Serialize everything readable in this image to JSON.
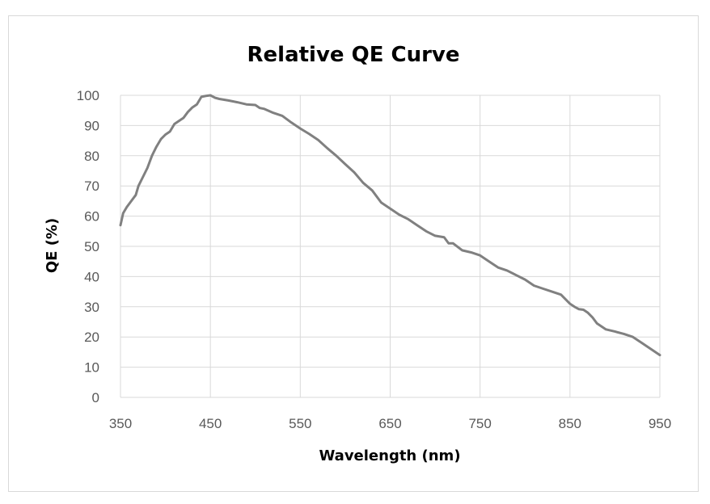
{
  "chart_data": {
    "type": "line",
    "title": "Relative QE Curve",
    "xlabel": "Wavelength (nm)",
    "ylabel": "QE (%)",
    "xlim": [
      350,
      950
    ],
    "ylim": [
      0,
      100
    ],
    "xticks": [
      350,
      450,
      550,
      650,
      750,
      850,
      950
    ],
    "yticks": [
      0,
      10,
      20,
      30,
      40,
      50,
      60,
      70,
      80,
      90,
      100
    ],
    "grid": true,
    "legend": "none",
    "line_color": "#808080",
    "series": [
      {
        "x": [
          350,
          353,
          357,
          362,
          367,
          370,
          375,
          380,
          385,
          390,
          395,
          400,
          405,
          410,
          415,
          420,
          425,
          430,
          435,
          440,
          445,
          450,
          455,
          460,
          470,
          480,
          490,
          500,
          505,
          510,
          520,
          530,
          540,
          550,
          560,
          570,
          580,
          590,
          600,
          610,
          620,
          630,
          640,
          650,
          660,
          670,
          680,
          690,
          700,
          710,
          715,
          720,
          730,
          740,
          750,
          760,
          770,
          780,
          790,
          800,
          810,
          820,
          830,
          840,
          850,
          855,
          860,
          865,
          870,
          875,
          880,
          890,
          900,
          910,
          920,
          930,
          940,
          950
        ],
        "y": [
          57,
          61,
          63,
          65,
          67,
          70,
          73,
          76,
          80,
          83,
          85.5,
          87,
          88,
          90.5,
          91.5,
          92.5,
          94.5,
          96,
          97,
          99.5,
          99.8,
          100,
          99.2,
          98.8,
          98.3,
          97.7,
          97,
          96.8,
          95.8,
          95.5,
          94.2,
          93.2,
          91,
          89,
          87.2,
          85.2,
          82.5,
          80,
          77.2,
          74.5,
          71,
          68.5,
          64.5,
          62.5,
          60.5,
          59,
          57,
          55,
          53.5,
          53,
          51,
          51,
          48.7,
          48,
          47,
          45,
          43,
          42,
          40.5,
          39,
          37,
          36,
          35,
          34,
          31,
          30,
          29.2,
          29,
          28,
          26.5,
          24.5,
          22.5,
          21.8,
          21,
          20,
          18,
          16,
          14
        ]
      }
    ]
  }
}
